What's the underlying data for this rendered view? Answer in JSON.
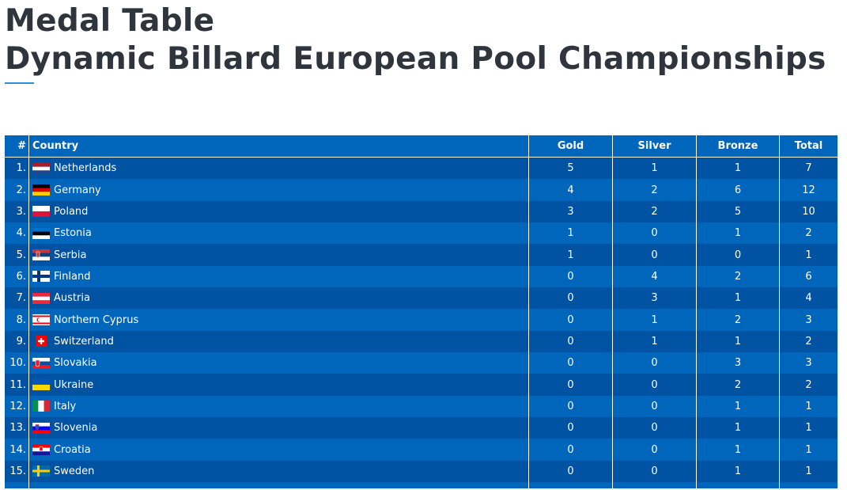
{
  "page": {
    "title_line1": "Medal Table",
    "title_line2": "Dynamic Billard European Pool Championships",
    "accent_color": "#2b8fd1"
  },
  "table": {
    "headers": {
      "rank": "#",
      "country": "Country",
      "gold": "Gold",
      "silver": "Silver",
      "bronze": "Bronze",
      "total": "Total"
    },
    "row_colors": {
      "odd": "#0052a3",
      "even": "#0066bb"
    },
    "rows": [
      {
        "rank": "1.",
        "country": "Netherlands",
        "flag": "netherlands-flag-icon",
        "gold": "5",
        "silver": "1",
        "bronze": "1",
        "total": "7"
      },
      {
        "rank": "2.",
        "country": "Germany",
        "flag": "germany-flag-icon",
        "gold": "4",
        "silver": "2",
        "bronze": "6",
        "total": "12"
      },
      {
        "rank": "3.",
        "country": "Poland",
        "flag": "poland-flag-icon",
        "gold": "3",
        "silver": "2",
        "bronze": "5",
        "total": "10"
      },
      {
        "rank": "4.",
        "country": "Estonia",
        "flag": "estonia-flag-icon",
        "gold": "1",
        "silver": "0",
        "bronze": "1",
        "total": "2"
      },
      {
        "rank": "5.",
        "country": "Serbia",
        "flag": "serbia-flag-icon",
        "gold": "1",
        "silver": "0",
        "bronze": "0",
        "total": "1"
      },
      {
        "rank": "6.",
        "country": "Finland",
        "flag": "finland-flag-icon",
        "gold": "0",
        "silver": "4",
        "bronze": "2",
        "total": "6"
      },
      {
        "rank": "7.",
        "country": "Austria",
        "flag": "austria-flag-icon",
        "gold": "0",
        "silver": "3",
        "bronze": "1",
        "total": "4"
      },
      {
        "rank": "8.",
        "country": "Northern Cyprus",
        "flag": "northern-cyprus-flag-icon",
        "gold": "0",
        "silver": "1",
        "bronze": "2",
        "total": "3"
      },
      {
        "rank": "9.",
        "country": "Switzerland",
        "flag": "switzerland-flag-icon",
        "gold": "0",
        "silver": "1",
        "bronze": "1",
        "total": "2"
      },
      {
        "rank": "10.",
        "country": "Slovakia",
        "flag": "slovakia-flag-icon",
        "gold": "0",
        "silver": "0",
        "bronze": "3",
        "total": "3"
      },
      {
        "rank": "11.",
        "country": "Ukraine",
        "flag": "ukraine-flag-icon",
        "gold": "0",
        "silver": "0",
        "bronze": "2",
        "total": "2"
      },
      {
        "rank": "12.",
        "country": "Italy",
        "flag": "italy-flag-icon",
        "gold": "0",
        "silver": "0",
        "bronze": "1",
        "total": "1"
      },
      {
        "rank": "13.",
        "country": "Slovenia",
        "flag": "slovenia-flag-icon",
        "gold": "0",
        "silver": "0",
        "bronze": "1",
        "total": "1"
      },
      {
        "rank": "14.",
        "country": "Croatia",
        "flag": "croatia-flag-icon",
        "gold": "0",
        "silver": "0",
        "bronze": "1",
        "total": "1"
      },
      {
        "rank": "15.",
        "country": "Sweden",
        "flag": "sweden-flag-icon",
        "gold": "0",
        "silver": "0",
        "bronze": "1",
        "total": "1"
      }
    ]
  }
}
